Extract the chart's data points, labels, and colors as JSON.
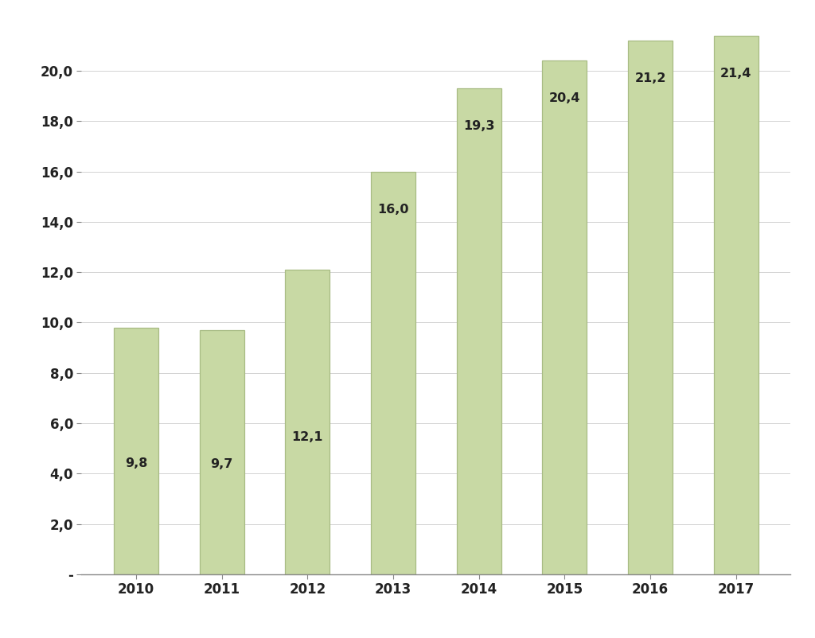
{
  "categories": [
    "2010",
    "2011",
    "2012",
    "2013",
    "2014",
    "2015",
    "2016",
    "2017"
  ],
  "values": [
    9.8,
    9.7,
    12.1,
    16.0,
    19.3,
    20.4,
    21.2,
    21.4
  ],
  "labels": [
    "9,8",
    "9,7",
    "12,1",
    "16,0",
    "19,3",
    "20,4",
    "21,2",
    "21,4"
  ],
  "bar_color": "#c8d9a4",
  "bar_edge_color": "#a8bb84",
  "background_color": "#ffffff",
  "plot_bg_color": "#ffffff",
  "ylim": [
    0,
    21.8
  ],
  "yticks": [
    0,
    2.0,
    4.0,
    6.0,
    8.0,
    10.0,
    12.0,
    14.0,
    16.0,
    18.0,
    20.0
  ],
  "ytick_labels": [
    "-",
    "2,0",
    "4,0",
    "6,0",
    "8,0",
    "10,0",
    "12,0",
    "14,0",
    "16,0",
    "18,0",
    "20,0"
  ],
  "label_fontsize": 11.5,
  "tick_fontsize": 12,
  "bar_width": 0.52,
  "label_inside_threshold": 14.0,
  "figsize": [
    10.24,
    8.02
  ],
  "dpi": 100
}
